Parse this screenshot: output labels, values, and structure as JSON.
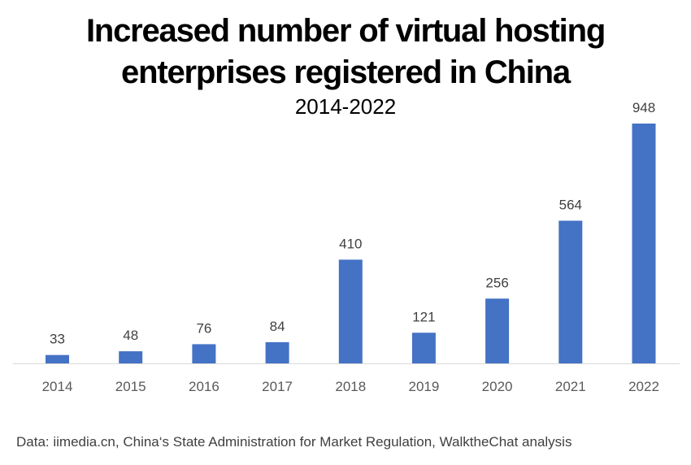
{
  "chart_data": {
    "type": "bar",
    "title": "Increased number of virtual hosting enterprises registered in China",
    "title_lines": [
      "Increased number of virtual hosting",
      "enterprises registered in China"
    ],
    "subtitle": "2014-2022",
    "categories": [
      "2014",
      "2015",
      "2016",
      "2017",
      "2018",
      "2019",
      "2020",
      "2021",
      "2022"
    ],
    "values": [
      33,
      48,
      76,
      84,
      410,
      121,
      256,
      564,
      948
    ],
    "xlabel": "",
    "ylabel": "",
    "ylim": [
      0,
      948
    ],
    "grid": false,
    "legend": "none",
    "bar_color": "#4472C4",
    "data_labels": true
  },
  "source": "Data: iimedia.cn, China‘s State Administration for Market Regulation, WalktheChat analysis"
}
